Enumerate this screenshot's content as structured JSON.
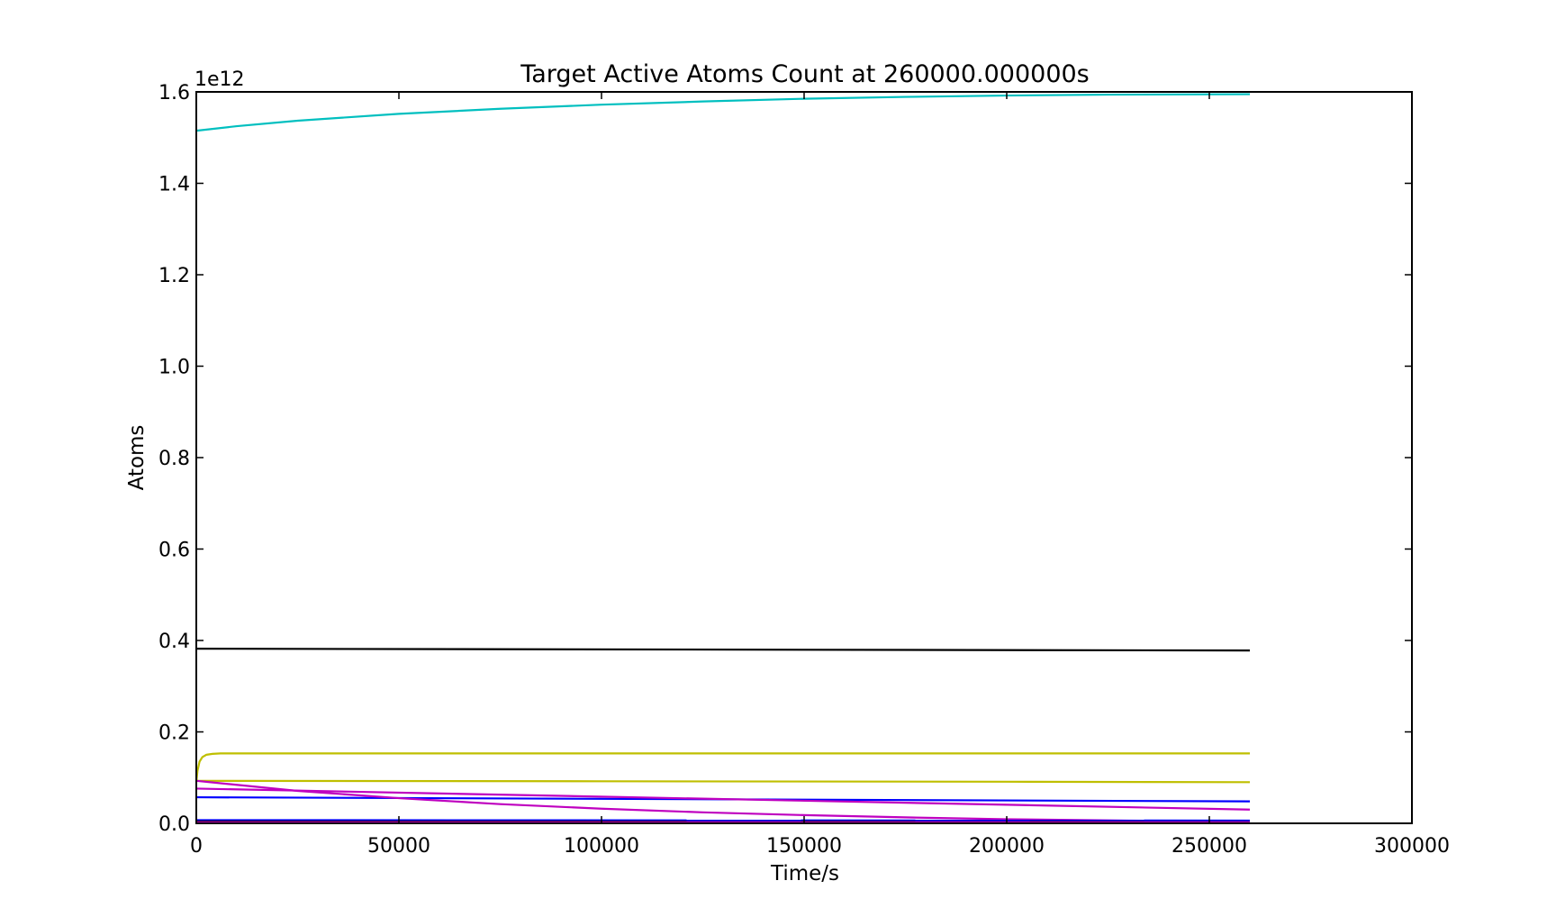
{
  "chart_data": {
    "type": "line",
    "title": "Target Active Atoms Count at 260000.000000s",
    "xlabel": "Time/s",
    "ylabel": "Atoms",
    "y_offset_label": "1e12",
    "xlim": [
      0,
      300000
    ],
    "ylim": [
      0,
      1.6
    ],
    "x_ticks": [
      0,
      50000,
      100000,
      150000,
      200000,
      250000,
      300000
    ],
    "x_tick_labels": [
      "0",
      "50000",
      "100000",
      "150000",
      "200000",
      "250000",
      "300000"
    ],
    "y_ticks": [
      0.0,
      0.2,
      0.4,
      0.6,
      0.8,
      1.0,
      1.2,
      1.4,
      1.6
    ],
    "y_tick_labels": [
      "0.0",
      "0.2",
      "0.4",
      "0.6",
      "0.8",
      "1.0",
      "1.2",
      "1.4",
      "1.6"
    ],
    "grid": false,
    "legend": "none",
    "series": [
      {
        "color": "#00bfbf",
        "x": [
          0,
          10000,
          25000,
          50000,
          75000,
          100000,
          125000,
          150000,
          175000,
          200000,
          225000,
          260000
        ],
        "y": [
          1.515,
          1.525,
          1.537,
          1.552,
          1.563,
          1.572,
          1.579,
          1.585,
          1.589,
          1.592,
          1.594,
          1.595
        ]
      },
      {
        "color": "#000000",
        "x": [
          0,
          260000
        ],
        "y": [
          0.382,
          0.378
        ]
      },
      {
        "color": "#bfbf00",
        "x": [
          0,
          300,
          800,
          1500,
          2500,
          4000,
          6000,
          10000,
          260000
        ],
        "y": [
          0.09,
          0.115,
          0.135,
          0.145,
          0.15,
          0.152,
          0.153,
          0.153,
          0.153
        ]
      },
      {
        "color": "#bfbf00",
        "x": [
          0,
          100000,
          200000,
          260000
        ],
        "y": [
          0.093,
          0.092,
          0.091,
          0.09
        ]
      },
      {
        "color": "#0000ff",
        "x": [
          0,
          260000
        ],
        "y": [
          0.057,
          0.048
        ]
      },
      {
        "color": "#bf00bf",
        "x": [
          0,
          260000
        ],
        "y": [
          0.076,
          0.03
        ]
      },
      {
        "color": "#bf00bf",
        "x": [
          0,
          25000,
          50000,
          75000,
          100000,
          125000,
          150000,
          175000,
          200000,
          230000,
          260000
        ],
        "y": [
          0.093,
          0.071,
          0.055,
          0.042,
          0.032,
          0.024,
          0.018,
          0.013,
          0.009,
          0.006,
          0.004
        ]
      },
      {
        "color": "#0000ff",
        "x": [
          0,
          260000
        ],
        "y": [
          0.007,
          0.006
        ]
      },
      {
        "color": "#000000",
        "x": [
          0,
          260000
        ],
        "y": [
          0.004,
          0.003
        ]
      },
      {
        "color": "#bf00bf",
        "x": [
          0,
          260000
        ],
        "y": [
          0.002,
          0.002
        ]
      }
    ]
  }
}
